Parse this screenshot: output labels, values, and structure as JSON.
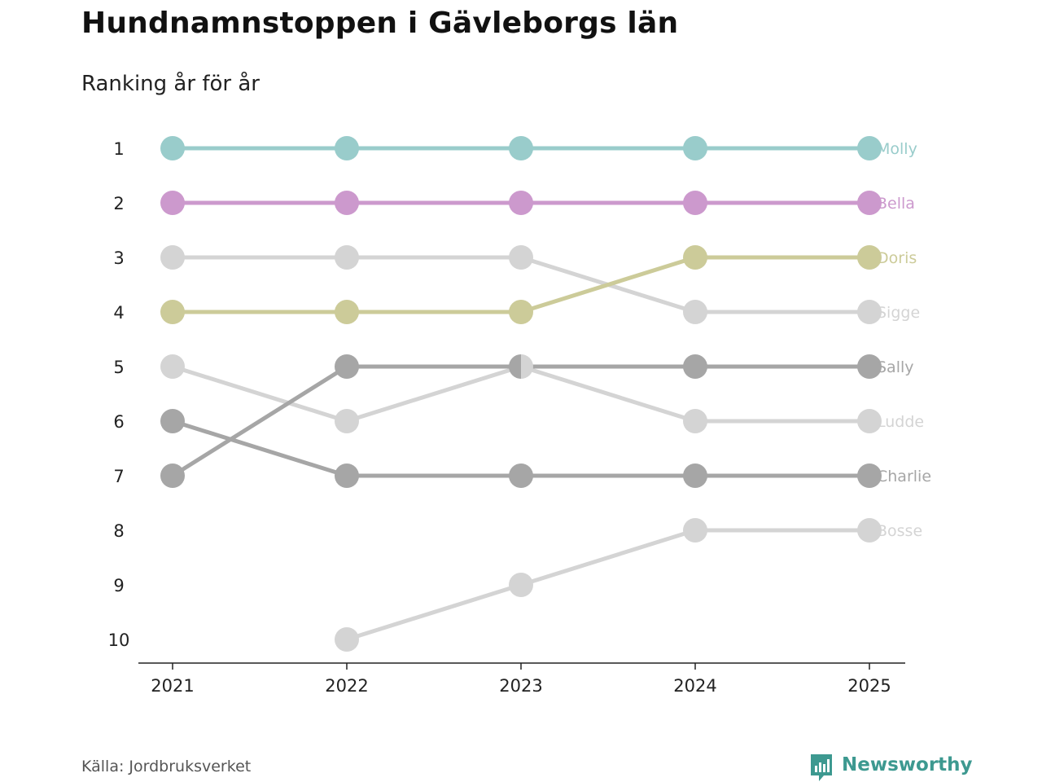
{
  "chart_data": {
    "type": "line",
    "title": "Hundnamnstoppen i Gävleborgs län",
    "subtitle": "Ranking år för år",
    "x": [
      "2021",
      "2022",
      "2023",
      "2024",
      "2025"
    ],
    "y_ticks": [
      "1",
      "2",
      "3",
      "4",
      "5",
      "6",
      "7",
      "8",
      "9",
      "10"
    ],
    "y_axis_reversed": true,
    "ylim": [
      1,
      10
    ],
    "xlabel": "",
    "ylabel": "",
    "series": [
      {
        "name": "Molly",
        "color": "#99cccb",
        "ranks": [
          1,
          1,
          1,
          1,
          1
        ]
      },
      {
        "name": "Bella",
        "color": "#cc99cd",
        "ranks": [
          2,
          2,
          2,
          2,
          2
        ]
      },
      {
        "name": "Sigge",
        "color": "#d4d4d4",
        "ranks": [
          3,
          3,
          3,
          4,
          4
        ]
      },
      {
        "name": "Doris",
        "color": "#cccb99",
        "ranks": [
          4,
          4,
          4,
          3,
          3
        ]
      },
      {
        "name": "Ludde",
        "color": "#d4d4d4",
        "ranks": [
          5,
          6,
          5,
          6,
          6
        ]
      },
      {
        "name": "Charlie",
        "color": "#a6a6a6",
        "ranks": [
          6,
          7,
          7,
          7,
          7
        ]
      },
      {
        "name": "Sally",
        "color": "#a6a6a6",
        "ranks": [
          7,
          5,
          5,
          5,
          5
        ]
      },
      {
        "name": "Bosse",
        "color": "#d4d4d4",
        "ranks": [
          null,
          10,
          9,
          8,
          8
        ]
      }
    ]
  },
  "footer": {
    "source": "Källa: Jordbruksverket",
    "brand": "Newsworthy",
    "brand_color": "#3d9990",
    "brand_icon": "newsworthy-logo-icon"
  }
}
